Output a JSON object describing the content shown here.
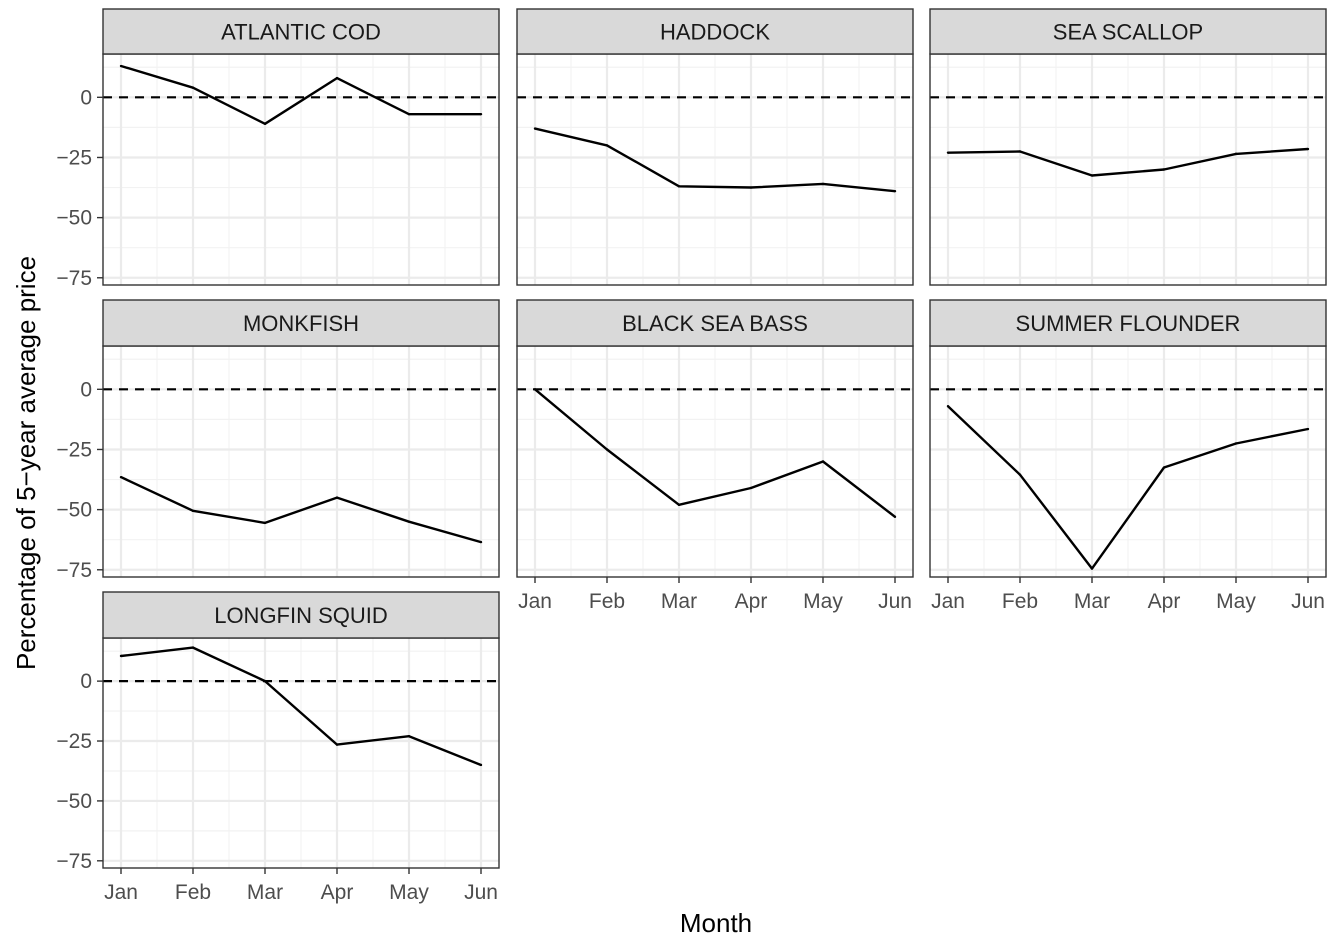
{
  "chart_data": {
    "type": "line",
    "layout": "faceted small multiples (3 columns)",
    "xlabel": "Month",
    "ylabel": "Percentage of 5−year average price",
    "categories": [
      "Jan",
      "Feb",
      "Mar",
      "Apr",
      "May",
      "Jun"
    ],
    "y_ticks": [
      0,
      -25,
      -50,
      -75
    ],
    "ylim": [
      -78,
      18
    ],
    "grid": true,
    "reference_line": {
      "y": 0,
      "style": "dashed"
    },
    "series": [
      {
        "name": "ATLANTIC COD",
        "values": [
          13,
          4,
          -11,
          8,
          -7,
          -7
        ]
      },
      {
        "name": "HADDOCK",
        "values": [
          -13,
          -20,
          -37,
          -37.5,
          -36,
          -39
        ]
      },
      {
        "name": "SEA SCALLOP",
        "values": [
          -23,
          -22.5,
          -32.5,
          -30,
          -23.5,
          -21.5
        ]
      },
      {
        "name": "MONKFISH",
        "values": [
          -36.5,
          -50.5,
          -55.5,
          -45,
          -55,
          -63.5
        ]
      },
      {
        "name": "BLACK SEA BASS",
        "values": [
          0,
          -25,
          -48,
          -41,
          -30,
          -53
        ]
      },
      {
        "name": "SUMMER FLOUNDER",
        "values": [
          -7,
          -35.5,
          -74.5,
          -32.5,
          -22.5,
          -16.5
        ]
      },
      {
        "name": "LONGFIN SQUID",
        "values": [
          10.5,
          14,
          0,
          -26.5,
          -23,
          -35
        ]
      }
    ]
  }
}
